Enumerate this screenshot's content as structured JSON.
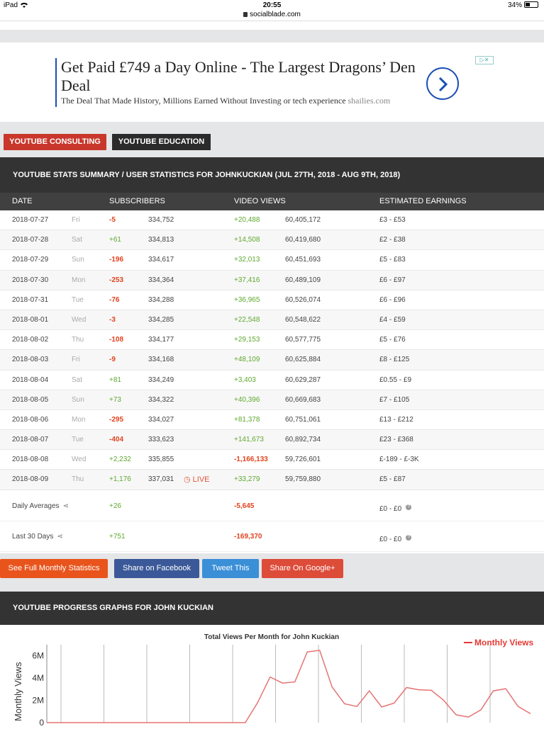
{
  "status_bar": {
    "device": "iPad",
    "time": "20:55",
    "url": "socialblade.com",
    "battery": "34%"
  },
  "ad": {
    "title": "Get Paid £749 a Day Online - The Largest Dragons’ Den Deal",
    "subtitle": "The Deal That Made History, Millions Earned Without Investing or tech experience",
    "source": "shailies.com"
  },
  "nav_buttons": {
    "consulting": "YOUTUBE CONSULTING",
    "education": "YOUTUBE EDUCATION"
  },
  "summary": {
    "header": "YOUTUBE STATS SUMMARY / USER STATISTICS FOR JOHNKUCKIAN (JUL 27TH, 2018 - AUG 9TH, 2018)",
    "columns": {
      "date": "DATE",
      "subscribers": "SUBSCRIBERS",
      "video_views": "VIDEO VIEWS",
      "earnings": "ESTIMATED EARNINGS"
    },
    "rows": [
      {
        "date": "2018-07-27",
        "day": "Fri",
        "sub_delta": "-5",
        "subs": "334,752",
        "view_delta": "+20,488",
        "views": "60,405,172",
        "earnings": "£3  -  £53"
      },
      {
        "date": "2018-07-28",
        "day": "Sat",
        "sub_delta": "+61",
        "subs": "334,813",
        "view_delta": "+14,508",
        "views": "60,419,680",
        "earnings": "£2  -  £38"
      },
      {
        "date": "2018-07-29",
        "day": "Sun",
        "sub_delta": "-196",
        "subs": "334,617",
        "view_delta": "+32,013",
        "views": "60,451,693",
        "earnings": "£5  -  £83"
      },
      {
        "date": "2018-07-30",
        "day": "Mon",
        "sub_delta": "-253",
        "subs": "334,364",
        "view_delta": "+37,416",
        "views": "60,489,109",
        "earnings": "£6  -  £97"
      },
      {
        "date": "2018-07-31",
        "day": "Tue",
        "sub_delta": "-76",
        "subs": "334,288",
        "view_delta": "+36,965",
        "views": "60,526,074",
        "earnings": "£6  -  £96"
      },
      {
        "date": "2018-08-01",
        "day": "Wed",
        "sub_delta": "-3",
        "subs": "334,285",
        "view_delta": "+22,548",
        "views": "60,548,622",
        "earnings": "£4  -  £59"
      },
      {
        "date": "2018-08-02",
        "day": "Thu",
        "sub_delta": "-108",
        "subs": "334,177",
        "view_delta": "+29,153",
        "views": "60,577,775",
        "earnings": "£5  -  £76"
      },
      {
        "date": "2018-08-03",
        "day": "Fri",
        "sub_delta": "-9",
        "subs": "334,168",
        "view_delta": "+48,109",
        "views": "60,625,884",
        "earnings": "£8  -  £125"
      },
      {
        "date": "2018-08-04",
        "day": "Sat",
        "sub_delta": "+81",
        "subs": "334,249",
        "view_delta": "+3,403",
        "views": "60,629,287",
        "earnings": "£0.55  -  £9"
      },
      {
        "date": "2018-08-05",
        "day": "Sun",
        "sub_delta": "+73",
        "subs": "334,322",
        "view_delta": "+40,396",
        "views": "60,669,683",
        "earnings": "£7  -  £105"
      },
      {
        "date": "2018-08-06",
        "day": "Mon",
        "sub_delta": "-295",
        "subs": "334,027",
        "view_delta": "+81,378",
        "views": "60,751,061",
        "earnings": "£13  -  £212"
      },
      {
        "date": "2018-08-07",
        "day": "Tue",
        "sub_delta": "-404",
        "subs": "333,623",
        "view_delta": "+141,673",
        "views": "60,892,734",
        "earnings": "£23  -  £368"
      },
      {
        "date": "2018-08-08",
        "day": "Wed",
        "sub_delta": "+2,232",
        "subs": "335,855",
        "view_delta": "-1,166,133",
        "views": "59,726,601",
        "earnings": "£-189  -  £-3K"
      },
      {
        "date": "2018-08-09",
        "day": "Thu",
        "sub_delta": "+1,176",
        "subs": "337,031",
        "live": "LIVE",
        "view_delta": "+33,279",
        "views": "59,759,880",
        "earnings": "£5  -  £87"
      }
    ],
    "daily_averages": {
      "label": "Daily Averages",
      "subs": "+26",
      "views": "-5,645",
      "earnings": "£0  -  £0"
    },
    "last_30_days": {
      "label": "Last 30 Days",
      "subs": "+751",
      "views": "-169,370",
      "earnings": "£0  -  £0"
    }
  },
  "actions": {
    "monthly": "See Full Monthly Statistics",
    "facebook": "Share on Facebook",
    "tweet": "Tweet This",
    "google": "Share On Google+"
  },
  "progress_header": "YOUTUBE PROGRESS GRAPHS FOR JOHN KUCKIAN",
  "colors": {
    "positive": "#5fa82f",
    "negative": "#e2431f",
    "accent_red": "#c9372c",
    "line": "#e57373"
  },
  "chart_data": {
    "type": "line",
    "title": "Total Views Per Month for John Kuckian",
    "ylabel": "Monthly Views",
    "y_ticks": [
      "6M",
      "4M",
      "2M",
      "0"
    ],
    "ylim": [
      0,
      7000000
    ],
    "legend": "top-right",
    "series": [
      {
        "name": "Monthly Views",
        "values": [
          0,
          0,
          0,
          0,
          0,
          0,
          0,
          0,
          0,
          0,
          0,
          0,
          0,
          0,
          0,
          0,
          0,
          1800000,
          4100000,
          3550000,
          3650000,
          6350000,
          6500000,
          3200000,
          1700000,
          1450000,
          2850000,
          1400000,
          1750000,
          3150000,
          2950000,
          2900000,
          2000000,
          700000,
          500000,
          1150000,
          2850000,
          3050000,
          1450000,
          800000
        ]
      }
    ]
  }
}
